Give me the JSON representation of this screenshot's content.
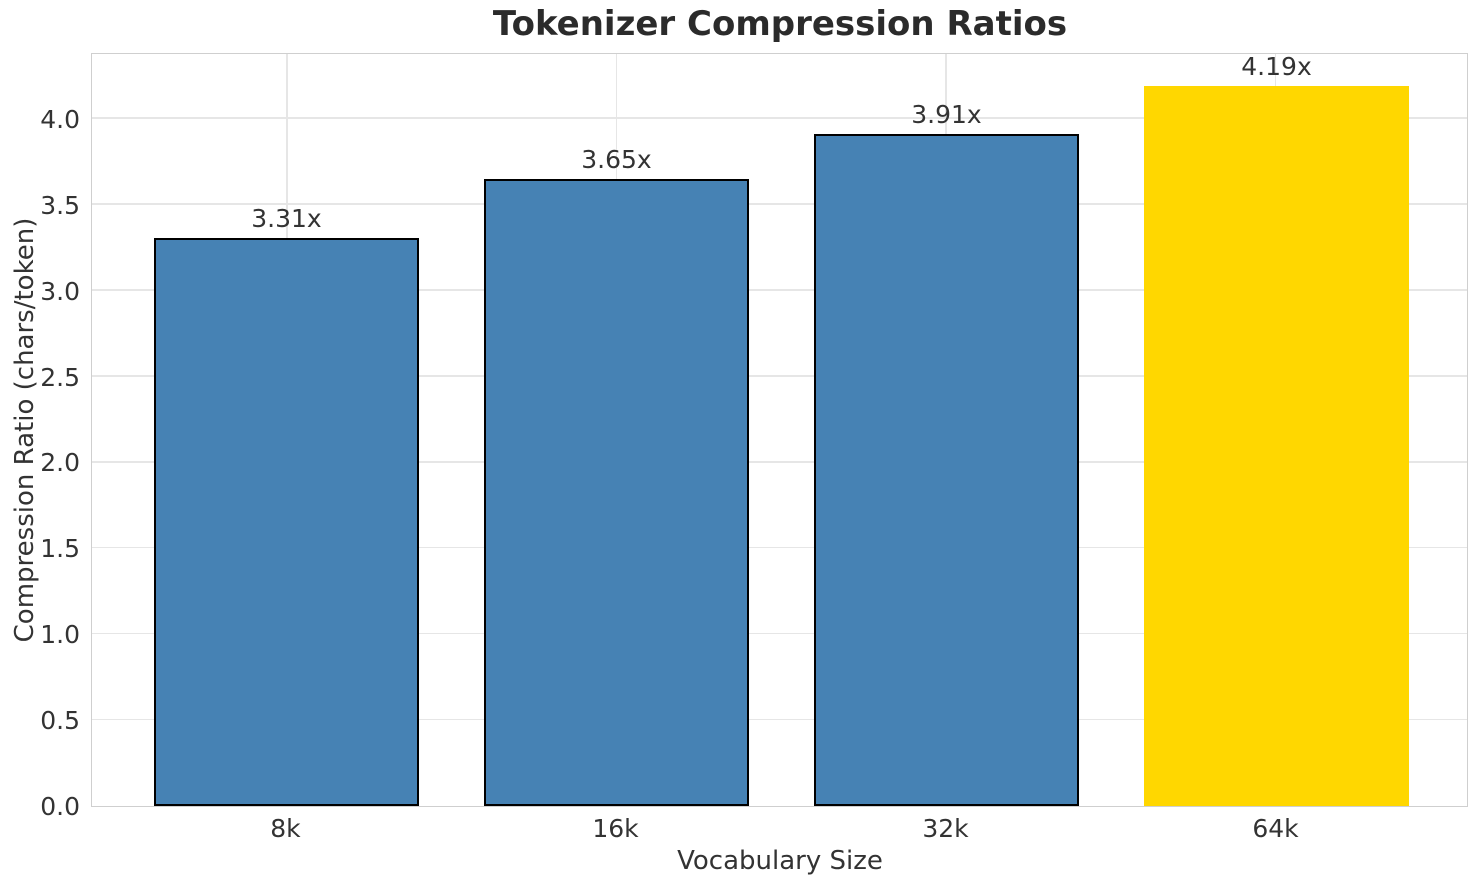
{
  "chart_data": {
    "type": "bar",
    "title": "Tokenizer Compression Ratios",
    "xlabel": "Vocabulary Size",
    "ylabel": "Compression Ratio (chars/token)",
    "categories": [
      "8k",
      "16k",
      "32k",
      "64k"
    ],
    "values": [
      3.31,
      3.65,
      3.91,
      4.19
    ],
    "bar_labels": [
      "3.31x",
      "3.65x",
      "3.91x",
      "4.19x"
    ],
    "ylim": [
      0,
      4.39
    ],
    "yticks": [
      "0.0",
      "0.5",
      "1.0",
      "1.5",
      "2.0",
      "2.5",
      "3.0",
      "3.5",
      "4.0"
    ],
    "grid": true,
    "legend": false,
    "bar_colors": [
      "#4682B4",
      "#4682B4",
      "#4682B4",
      "#FFD700"
    ],
    "bar_edge_colors": [
      "#000000",
      "#000000",
      "#000000",
      "none"
    ]
  },
  "colors": {
    "background": "#ffffff",
    "bar_blue": "#4682B4",
    "bar_gold": "#FFD700",
    "grid": "#e6e6e6",
    "spine": "#cfcfcf",
    "title_text": "#2b2b2b",
    "label_text": "#333333"
  }
}
